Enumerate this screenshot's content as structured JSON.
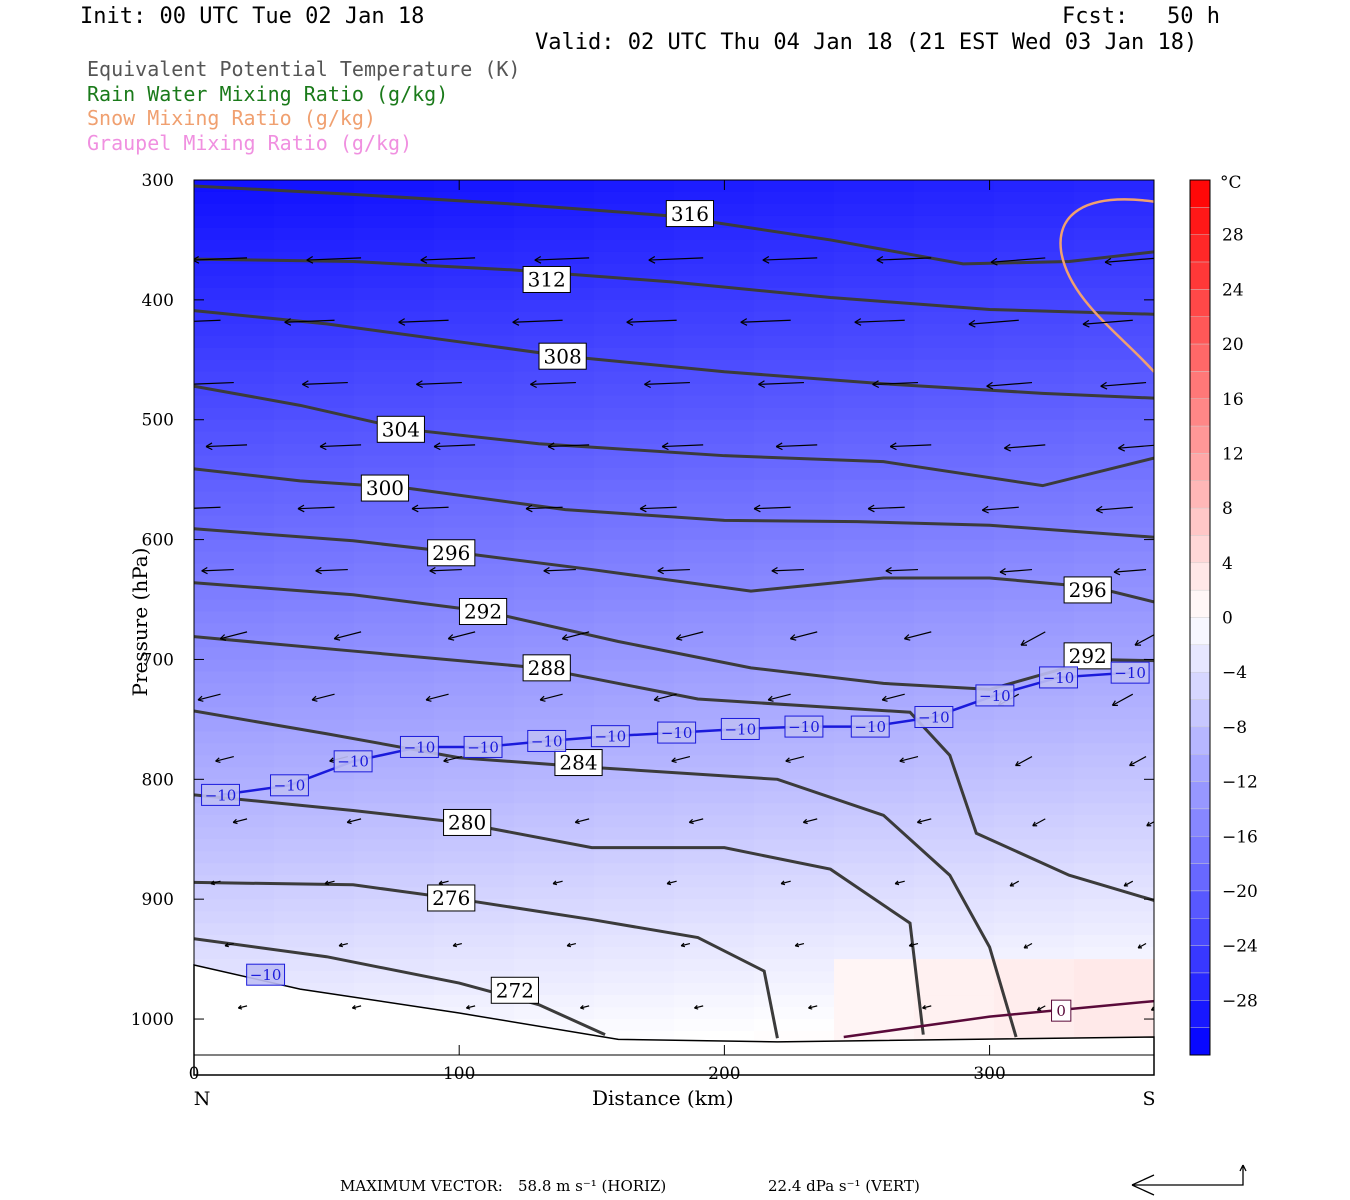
{
  "header": {
    "init": "Init: 00 UTC Tue 02 Jan 18",
    "fcst_label": "Fcst:",
    "fcst_value": "50 h",
    "valid": "Valid: 02 UTC Thu 04 Jan 18 (21 EST Wed 03 Jan 18)"
  },
  "legend": [
    {
      "text": "Equivalent Potential Temperature (K)",
      "color": "#555555"
    },
    {
      "text": "Rain Water Mixing Ratio (g/kg)",
      "color": "#1a7a1a"
    },
    {
      "text": "Snow Mixing Ratio (g/kg)",
      "color": "#f0a070"
    },
    {
      "text": "Graupel Mixing Ratio (g/kg)",
      "color": "#f090e0"
    }
  ],
  "footer": {
    "label": "MAXIMUM VECTOR:",
    "horiz": "58.8 m s⁻¹ (HORIZ)",
    "vert": "22.4 dPa s⁻¹ (VERT)"
  },
  "chart_data": {
    "type": "cross-section",
    "xlabel": "Distance (km)",
    "ylabel": "Pressure (hPa)",
    "xlim": [
      0,
      362
    ],
    "ylim": [
      1030,
      300
    ],
    "x_ticks": [
      0,
      100,
      200,
      300
    ],
    "y_ticks": [
      300,
      400,
      500,
      600,
      700,
      800,
      900,
      1000
    ],
    "x_end_labels": [
      "N",
      "S"
    ],
    "colorbar": {
      "unit": "°C",
      "tick_labels": [
        "28",
        "24",
        "20",
        "16",
        "12",
        "8",
        "4",
        "0",
        "−4",
        "−8",
        "−12",
        "−16",
        "−20",
        "−24",
        "−28"
      ],
      "tick_values": [
        28,
        24,
        20,
        16,
        12,
        8,
        4,
        0,
        -4,
        -8,
        -12,
        -16,
        -20,
        -24,
        -28
      ],
      "range": [
        -32,
        32
      ],
      "step": 2
    },
    "theta_e_contours": [
      {
        "label": "316",
        "label_at": [
          187,
          328
        ],
        "points": [
          [
            0,
            305
          ],
          [
            60,
            312
          ],
          [
            120,
            320
          ],
          [
            180,
            330
          ],
          [
            240,
            350
          ],
          [
            290,
            370
          ],
          [
            330,
            368
          ],
          [
            362,
            360
          ]
        ]
      },
      {
        "label": "312",
        "label_at": [
          133,
          383
        ],
        "points": [
          [
            0,
            366
          ],
          [
            60,
            368
          ],
          [
            120,
            375
          ],
          [
            180,
            385
          ],
          [
            240,
            398
          ],
          [
            300,
            408
          ],
          [
            362,
            412
          ]
        ]
      },
      {
        "label": "308",
        "label_at": [
          139,
          447
        ],
        "points": [
          [
            0,
            409
          ],
          [
            50,
            420
          ],
          [
            100,
            435
          ],
          [
            140,
            447
          ],
          [
            200,
            460
          ],
          [
            260,
            470
          ],
          [
            320,
            478
          ],
          [
            362,
            482
          ]
        ]
      },
      {
        "label": "304",
        "label_at": [
          78,
          508
        ],
        "points": [
          [
            0,
            472
          ],
          [
            40,
            488
          ],
          [
            80,
            508
          ],
          [
            130,
            520
          ],
          [
            200,
            530
          ],
          [
            260,
            535
          ],
          [
            320,
            555
          ],
          [
            362,
            532
          ]
        ]
      },
      {
        "label": "300",
        "label_at": [
          72,
          557
        ],
        "points": [
          [
            0,
            541
          ],
          [
            40,
            551
          ],
          [
            80,
            557
          ],
          [
            140,
            575
          ],
          [
            200,
            584
          ],
          [
            250,
            585
          ],
          [
            300,
            588
          ],
          [
            362,
            598
          ]
        ]
      },
      {
        "label": "296",
        "label_at": [
          97,
          611
        ],
        "points": [
          [
            0,
            591
          ],
          [
            60,
            601
          ],
          [
            100,
            611
          ],
          [
            150,
            625
          ],
          [
            210,
            643
          ],
          [
            260,
            632
          ],
          [
            300,
            632
          ],
          [
            340,
            640
          ],
          [
            362,
            652
          ]
        ]
      },
      {
        "label": "296",
        "label_at": [
          337,
          642
        ],
        "points": []
      },
      {
        "label": "292",
        "label_at": [
          109,
          660
        ],
        "points": [
          [
            0,
            636
          ],
          [
            60,
            646
          ],
          [
            110,
            660
          ],
          [
            160,
            685
          ],
          [
            210,
            707
          ],
          [
            260,
            720
          ],
          [
            300,
            725
          ],
          [
            340,
            700
          ],
          [
            362,
            701
          ]
        ]
      },
      {
        "label": "292",
        "label_at": [
          337,
          697
        ],
        "points": []
      },
      {
        "label": "288",
        "label_at": [
          133,
          707
        ],
        "points": [
          [
            0,
            681
          ],
          [
            60,
            693
          ],
          [
            130,
            707
          ],
          [
            190,
            733
          ],
          [
            240,
            740
          ],
          [
            270,
            744
          ],
          [
            285,
            780
          ],
          [
            295,
            845
          ],
          [
            330,
            880
          ],
          [
            362,
            901
          ]
        ]
      },
      {
        "label": "284",
        "label_at": [
          145,
          786
        ],
        "points": [
          [
            0,
            743
          ],
          [
            50,
            762
          ],
          [
            100,
            782
          ],
          [
            150,
            790
          ],
          [
            220,
            800
          ],
          [
            260,
            830
          ],
          [
            285,
            880
          ],
          [
            300,
            940
          ],
          [
            310,
            1015
          ]
        ]
      },
      {
        "label": "280",
        "label_at": [
          103,
          836
        ],
        "points": [
          [
            0,
            813
          ],
          [
            60,
            826
          ],
          [
            100,
            836
          ],
          [
            150,
            857
          ],
          [
            200,
            857
          ],
          [
            240,
            875
          ],
          [
            270,
            920
          ],
          [
            275,
            1013
          ]
        ]
      },
      {
        "label": "276",
        "label_at": [
          97,
          899
        ],
        "points": [
          [
            0,
            886
          ],
          [
            60,
            888
          ],
          [
            100,
            900
          ],
          [
            150,
            917
          ],
          [
            190,
            932
          ],
          [
            215,
            960
          ],
          [
            220,
            1016
          ]
        ]
      },
      {
        "label": "272",
        "label_at": [
          121,
          976
        ],
        "points": [
          [
            0,
            933
          ],
          [
            50,
            948
          ],
          [
            100,
            970
          ],
          [
            130,
            988
          ],
          [
            155,
            1013
          ]
        ]
      }
    ],
    "temperature_contours": [
      {
        "label": "−10",
        "labels_at": [
          [
            10,
            813
          ],
          [
            36,
            805
          ],
          [
            60,
            785
          ],
          [
            85,
            773
          ],
          [
            109,
            773
          ],
          [
            133,
            768
          ],
          [
            157,
            764
          ],
          [
            182,
            761
          ],
          [
            206,
            758
          ],
          [
            230,
            756
          ],
          [
            255,
            756
          ],
          [
            279,
            748
          ],
          [
            302,
            730
          ],
          [
            326,
            715
          ],
          [
            353,
            711
          ],
          [
            27,
            963
          ]
        ]
      },
      {
        "label": "0",
        "labels_at": [
          [
            327,
            993
          ]
        ]
      }
    ],
    "wind_vectors": "arrows every ~40 km and ~50 hPa, predominantly pointing west (toward N edge)"
  }
}
